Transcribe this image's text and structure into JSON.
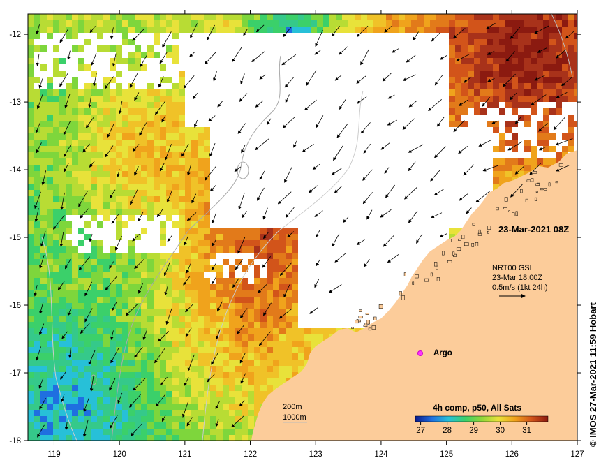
{
  "map": {
    "date_label": "23-Mar-2021 08Z",
    "lon_ticks": [
      "119",
      "120",
      "121",
      "122",
      "123",
      "124",
      "125",
      "126",
      "127"
    ],
    "lat_ticks": [
      "-12",
      "-13",
      "-14",
      "-15",
      "-16",
      "-17",
      "-18"
    ],
    "lon_range": [
      118.6,
      127.0
    ],
    "lat_range": [
      -18.0,
      -11.7
    ]
  },
  "currents": {
    "line1": "NRT00 GSL",
    "line2": "23-Mar 18:00Z",
    "line3": "0.5m/s (1kt 24h)"
  },
  "argo": {
    "label": "Argo",
    "color": "#ff33ff"
  },
  "isobaths": {
    "line1": "200m",
    "line2": "1000m"
  },
  "colorbar": {
    "title": "4h comp, p50, All Sats",
    "ticks": [
      "27",
      "28",
      "29",
      "30",
      "31"
    ],
    "range": [
      26.8,
      31.8
    ],
    "colors": [
      "#0a1a8c",
      "#1f6fe0",
      "#27c0d8",
      "#3bd06a",
      "#8fd63a",
      "#e8e23a",
      "#f0a31c",
      "#d2541a",
      "#8b1a10"
    ]
  },
  "land_color": "#fccc9a",
  "credit": "© IMOS 27-Mar-2021 11:59 Hobart"
}
